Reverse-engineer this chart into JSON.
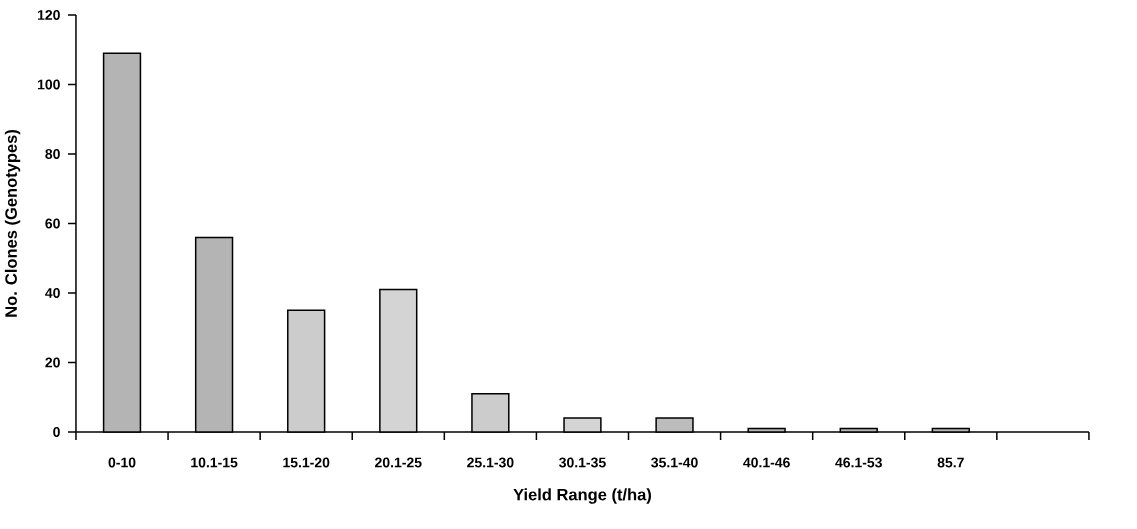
{
  "chart_data": {
    "type": "bar",
    "xlabel": "Yield Range (t/ha)",
    "ylabel": "No. Clones (Genotypes)",
    "categories": [
      "0-10",
      "10.1-15",
      "15.1-20",
      "20.1-25",
      "25.1-30",
      "30.1-35",
      "35.1-40",
      "40.1-46",
      "46.1-53",
      "85.7",
      null
    ],
    "values": [
      109,
      56,
      35,
      41,
      11,
      4,
      4,
      1,
      1,
      1,
      null
    ],
    "colors": [
      "#b4b4b4",
      "#b4b4b4",
      "#cccccc",
      "#d4d4d4",
      "#cccccc",
      "#d4d4d4",
      "#bcbcbc",
      "#b4b4b4",
      "#b4b4b4",
      "#b4b4b4",
      "#b4b4b4"
    ],
    "ylim": [
      0,
      120
    ],
    "yticks": [
      0,
      20,
      40,
      60,
      80,
      100,
      120
    ],
    "grid": false
  }
}
